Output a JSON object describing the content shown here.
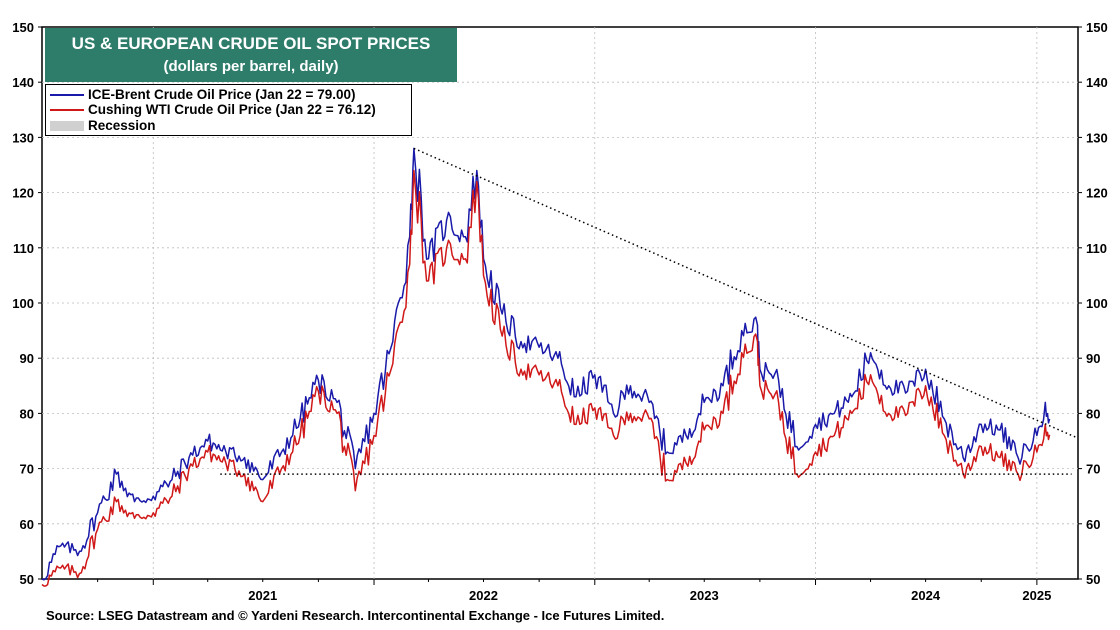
{
  "chart_data": {
    "type": "line",
    "title": "US & EUROPEAN CRUDE OIL SPOT PRICES",
    "subtitle": "(dollars per barrel, daily)",
    "xlabel": "",
    "ylabel": "",
    "x_ticks": [
      "2021",
      "2022",
      "2023",
      "2024",
      "2025"
    ],
    "ylim": [
      50,
      150
    ],
    "y_ticks": [
      50,
      60,
      70,
      80,
      90,
      100,
      110,
      120,
      130,
      140,
      150
    ],
    "legend_position": "top-left",
    "grid": true,
    "colors": {
      "brent": "#1a1aaa",
      "wti": "#d01818",
      "recession": "#d0d0d0"
    },
    "legend": [
      {
        "label": "ICE-Brent Crude Oil Price (Jan 22 = 79.00)",
        "key": "brent"
      },
      {
        "label": "Cushing WTI Crude Oil Price (Jan 22 = 76.12)",
        "key": "wti"
      },
      {
        "label": "Recession",
        "key": "recession"
      }
    ],
    "series": [
      {
        "name": "ICE-Brent Crude Oil Price",
        "key": "brent",
        "x": [
          "2020-07-01",
          "2020-08-01",
          "2020-09-01",
          "2020-10-01",
          "2020-11-01",
          "2020-12-01",
          "2021-01-01",
          "2021-02-01",
          "2021-03-01",
          "2021-04-01",
          "2021-05-01",
          "2021-06-01",
          "2021-07-01",
          "2021-08-01",
          "2021-09-01",
          "2021-10-01",
          "2021-11-01",
          "2021-12-01",
          "2022-01-01",
          "2022-02-01",
          "2022-03-01",
          "2022-03-08",
          "2022-04-01",
          "2022-05-01",
          "2022-06-01",
          "2022-06-20",
          "2022-07-01",
          "2022-08-01",
          "2022-09-01",
          "2022-10-01",
          "2022-11-01",
          "2022-12-01",
          "2023-01-01",
          "2023-02-01",
          "2023-03-01",
          "2023-04-01",
          "2023-05-01",
          "2023-06-01",
          "2023-07-01",
          "2023-08-01",
          "2023-09-01",
          "2023-09-27",
          "2023-10-01",
          "2023-11-01",
          "2023-12-01",
          "2024-01-01",
          "2024-02-01",
          "2024-03-01",
          "2024-04-01",
          "2024-05-01",
          "2024-06-01",
          "2024-07-01",
          "2024-08-01",
          "2024-09-01",
          "2024-10-01",
          "2024-11-01",
          "2024-12-01",
          "2025-01-01",
          "2025-01-15",
          "2025-01-22"
        ],
        "values": [
          50,
          56,
          55,
          62,
          69,
          64,
          65,
          68,
          72,
          75,
          73,
          72,
          68,
          73,
          79,
          86,
          82,
          70,
          80,
          93,
          112,
          128,
          108,
          115,
          112,
          124,
          108,
          98,
          93,
          92,
          90,
          83,
          87,
          80,
          85,
          82,
          73,
          76,
          82,
          85,
          95,
          96,
          88,
          86,
          74,
          78,
          80,
          83,
          91,
          85,
          84,
          88,
          79,
          72,
          78,
          77,
          72,
          76,
          82,
          79
        ]
      },
      {
        "name": "Cushing WTI Crude Oil Price",
        "key": "wti",
        "x": [
          "2020-07-01",
          "2020-08-01",
          "2020-09-01",
          "2020-10-01",
          "2020-11-01",
          "2020-12-01",
          "2021-01-01",
          "2021-02-01",
          "2021-03-01",
          "2021-04-01",
          "2021-05-01",
          "2021-06-01",
          "2021-07-01",
          "2021-08-01",
          "2021-09-01",
          "2021-10-01",
          "2021-11-01",
          "2021-12-01",
          "2022-01-01",
          "2022-02-01",
          "2022-03-01",
          "2022-03-08",
          "2022-04-01",
          "2022-05-01",
          "2022-06-01",
          "2022-06-20",
          "2022-07-01",
          "2022-08-01",
          "2022-09-01",
          "2022-10-01",
          "2022-11-01",
          "2022-12-01",
          "2023-01-01",
          "2023-02-01",
          "2023-03-01",
          "2023-04-01",
          "2023-05-01",
          "2023-06-01",
          "2023-07-01",
          "2023-08-01",
          "2023-09-01",
          "2023-09-27",
          "2023-10-01",
          "2023-11-01",
          "2023-12-01",
          "2024-01-01",
          "2024-02-01",
          "2024-03-01",
          "2024-04-01",
          "2024-05-01",
          "2024-06-01",
          "2024-07-01",
          "2024-08-01",
          "2024-09-01",
          "2024-10-01",
          "2024-11-01",
          "2024-12-01",
          "2025-01-01",
          "2025-01-15",
          "2025-01-22"
        ],
        "values": [
          49,
          52,
          51,
          59,
          64,
          61,
          62,
          65,
          70,
          73,
          71,
          69,
          64,
          70,
          76,
          84,
          80,
          66,
          76,
          89,
          107,
          124,
          104,
          110,
          108,
          122,
          105,
          94,
          88,
          87,
          85,
          78,
          81,
          76,
          80,
          79,
          68,
          71,
          77,
          80,
          91,
          93,
          85,
          82,
          69,
          73,
          76,
          80,
          87,
          80,
          80,
          85,
          76,
          69,
          74,
          72,
          69,
          73,
          78,
          76.12
        ]
      }
    ],
    "annotations": [
      {
        "type": "dotted-trendline",
        "from": {
          "x": "2022-03-08",
          "y": 128
        },
        "to": {
          "x": "2025-01-22",
          "y": 76
        }
      },
      {
        "type": "dotted-horizontal",
        "y": 69,
        "from_x": "2021-12-01",
        "to_x": "2025-01-22"
      }
    ]
  },
  "source": "Source: LSEG Datastream and © Yardeni Research. Intercontinental Exchange - Ice Futures Limited."
}
